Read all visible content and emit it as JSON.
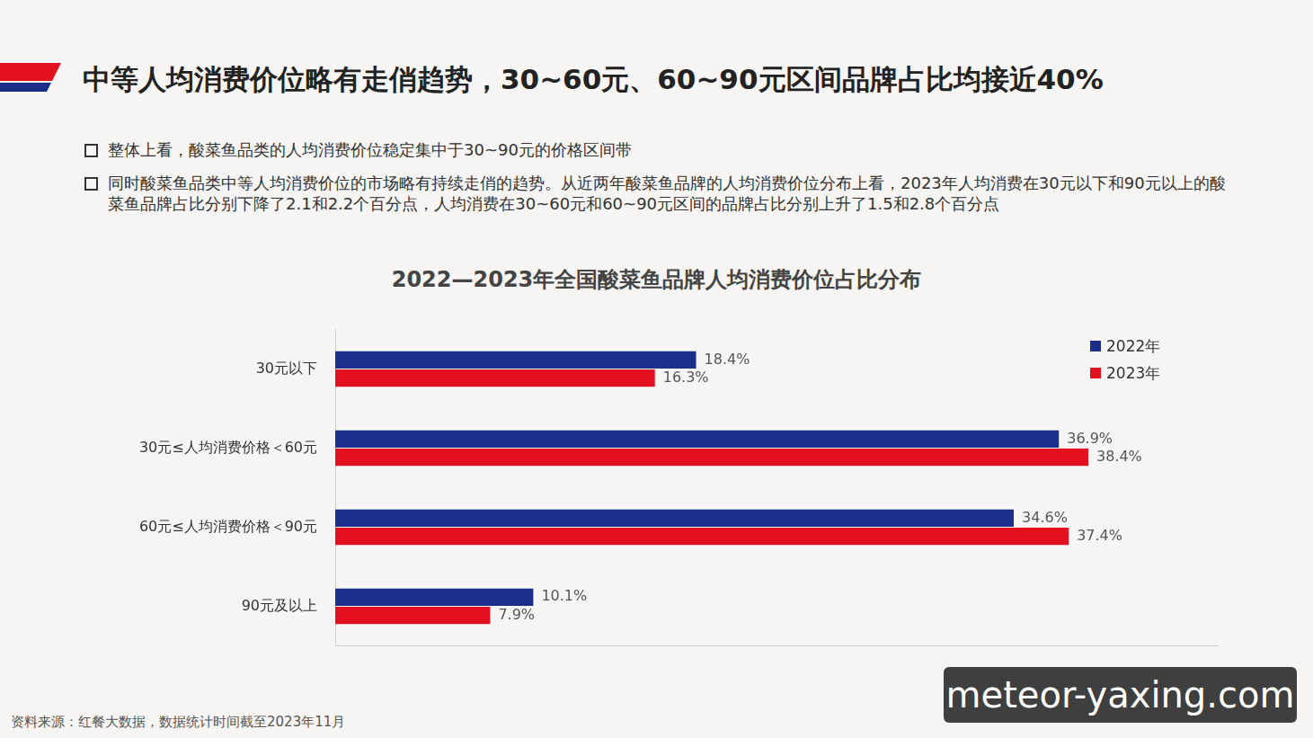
{
  "header": {
    "title": "中等人均消费价位略有走俏趋势，30~60元、60~90元区间品牌占比均接近40%"
  },
  "bullets": [
    "整体上看，酸菜鱼品类的人均消费价位稳定集中于30~90元的价格区间带",
    "同时酸菜鱼品类中等人均消费价位的市场略有持续走俏的趋势。从近两年酸菜鱼品牌的人均消费价位分布上看，2023年人均消费在30元以下和90元以上的酸菜鱼品牌占比分别下降了2.1和2.2个百分点，人均消费在30~60元和60~90元区间的品牌占比分别上升了1.5和2.8个百分点"
  ],
  "chart_data": {
    "type": "bar",
    "orientation": "horizontal",
    "title": "2022—2023年全国酸菜鱼品牌人均消费价位占比分布",
    "categories": [
      "30元以下",
      "30元≤人均消费价格＜60元",
      "60元≤人均消费价格＜90元",
      "90元及以上"
    ],
    "series": [
      {
        "name": "2022年",
        "color": "#1b2e8a",
        "values": [
          18.4,
          36.9,
          34.6,
          10.1
        ],
        "value_labels": [
          "18.4%",
          "36.9%",
          "34.6%",
          "10.1%"
        ]
      },
      {
        "name": "2023年",
        "color": "#e3101f",
        "values": [
          16.3,
          38.4,
          37.4,
          7.9
        ],
        "value_labels": [
          "16.3%",
          "38.4%",
          "37.4%",
          "7.9%"
        ]
      }
    ],
    "xlim": [
      0,
      45
    ],
    "grid": false,
    "legend": "top-right",
    "data_labels": true,
    "tick_labels": "y"
  },
  "source": "资料来源：红餐大数据，数据统计时间截至2023年11月",
  "watermark": "meteor-yaxing.com"
}
